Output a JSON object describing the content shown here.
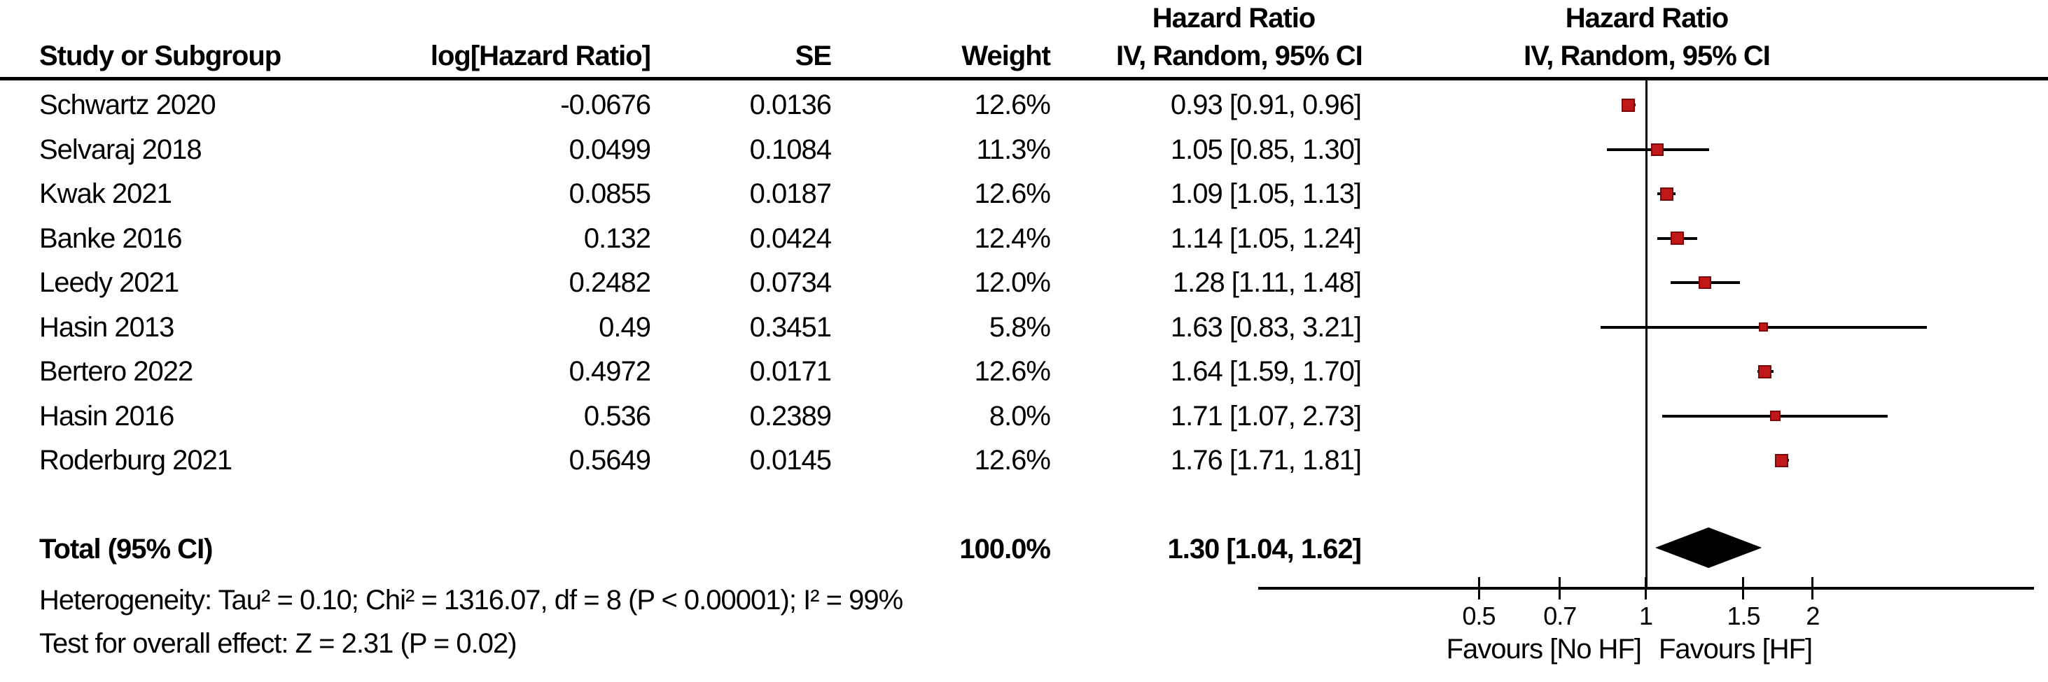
{
  "header": {
    "effect_top_left": "Hazard Ratio",
    "effect_top_right": "Hazard Ratio",
    "study": "Study or Subgroup",
    "log_hr": "log[Hazard Ratio]",
    "se": "SE",
    "weight": "Weight",
    "method_left": "IV, Random, 95% CI",
    "method_right": "IV, Random, 95% CI"
  },
  "total_row": {
    "label": "Total (95% CI)",
    "weight": "100.0%",
    "ci_text": "1.30 [1.04, 1.62]"
  },
  "footnotes": {
    "heterogeneity": "Heterogeneity: Tau² = 0.10; Chi² = 1316.07, df = 8 (P < 0.00001); I² = 99%",
    "overall_effect": "Test for overall effect: Z = 2.31 (P = 0.02)"
  },
  "plot": {
    "favours_left": "Favours [No HF]",
    "favours_right": "Favours [HF]"
  },
  "colors": {
    "marker_fill": "#c01818",
    "marker_border": "#7c0a0a",
    "diamond": "#000000",
    "line": "#000000"
  },
  "chart_data": {
    "type": "forest",
    "effect_measure": "Hazard Ratio",
    "model": "IV, Random, 95% CI",
    "scale": "log",
    "axis": {
      "ticks": [
        0.5,
        0.7,
        1,
        1.5,
        2
      ],
      "min": 0.2,
      "max": 5
    },
    "studies": [
      {
        "name": "Schwartz 2020",
        "log_hr": "-0.0676",
        "se": "0.0136",
        "weight": "12.6%",
        "weight_pct": 12.6,
        "hr": 0.93,
        "ci_low": 0.91,
        "ci_high": 0.96,
        "ci_text": "0.93 [0.91, 0.96]"
      },
      {
        "name": "Selvaraj 2018",
        "log_hr": "0.0499",
        "se": "0.1084",
        "weight": "11.3%",
        "weight_pct": 11.3,
        "hr": 1.05,
        "ci_low": 0.85,
        "ci_high": 1.3,
        "ci_text": "1.05 [0.85, 1.30]"
      },
      {
        "name": "Kwak 2021",
        "log_hr": "0.0855",
        "se": "0.0187",
        "weight": "12.6%",
        "weight_pct": 12.6,
        "hr": 1.09,
        "ci_low": 1.05,
        "ci_high": 1.13,
        "ci_text": "1.09 [1.05, 1.13]"
      },
      {
        "name": "Banke 2016",
        "log_hr": "0.132",
        "se": "0.0424",
        "weight": "12.4%",
        "weight_pct": 12.4,
        "hr": 1.14,
        "ci_low": 1.05,
        "ci_high": 1.24,
        "ci_text": "1.14 [1.05, 1.24]"
      },
      {
        "name": "Leedy 2021",
        "log_hr": "0.2482",
        "se": "0.0734",
        "weight": "12.0%",
        "weight_pct": 12.0,
        "hr": 1.28,
        "ci_low": 1.11,
        "ci_high": 1.48,
        "ci_text": "1.28 [1.11, 1.48]"
      },
      {
        "name": "Hasin 2013",
        "log_hr": "0.49",
        "se": "0.3451",
        "weight": "5.8%",
        "weight_pct": 5.8,
        "hr": 1.63,
        "ci_low": 0.83,
        "ci_high": 3.21,
        "ci_text": "1.63 [0.83, 3.21]"
      },
      {
        "name": "Bertero 2022",
        "log_hr": "0.4972",
        "se": "0.0171",
        "weight": "12.6%",
        "weight_pct": 12.6,
        "hr": 1.64,
        "ci_low": 1.59,
        "ci_high": 1.7,
        "ci_text": "1.64 [1.59, 1.70]"
      },
      {
        "name": "Hasin 2016",
        "log_hr": "0.536",
        "se": "0.2389",
        "weight": "8.0%",
        "weight_pct": 8.0,
        "hr": 1.71,
        "ci_low": 1.07,
        "ci_high": 2.73,
        "ci_text": "1.71 [1.07, 2.73]"
      },
      {
        "name": "Roderburg 2021",
        "log_hr": "0.5649",
        "se": "0.0145",
        "weight": "12.6%",
        "weight_pct": 12.6,
        "hr": 1.76,
        "ci_low": 1.71,
        "ci_high": 1.81,
        "ci_text": "1.76 [1.71, 1.81]"
      }
    ],
    "total": {
      "label": "Total (95% CI)",
      "weight_pct": 100.0,
      "hr": 1.3,
      "ci_low": 1.04,
      "ci_high": 1.62,
      "ci_text": "1.30 [1.04, 1.62]"
    }
  }
}
